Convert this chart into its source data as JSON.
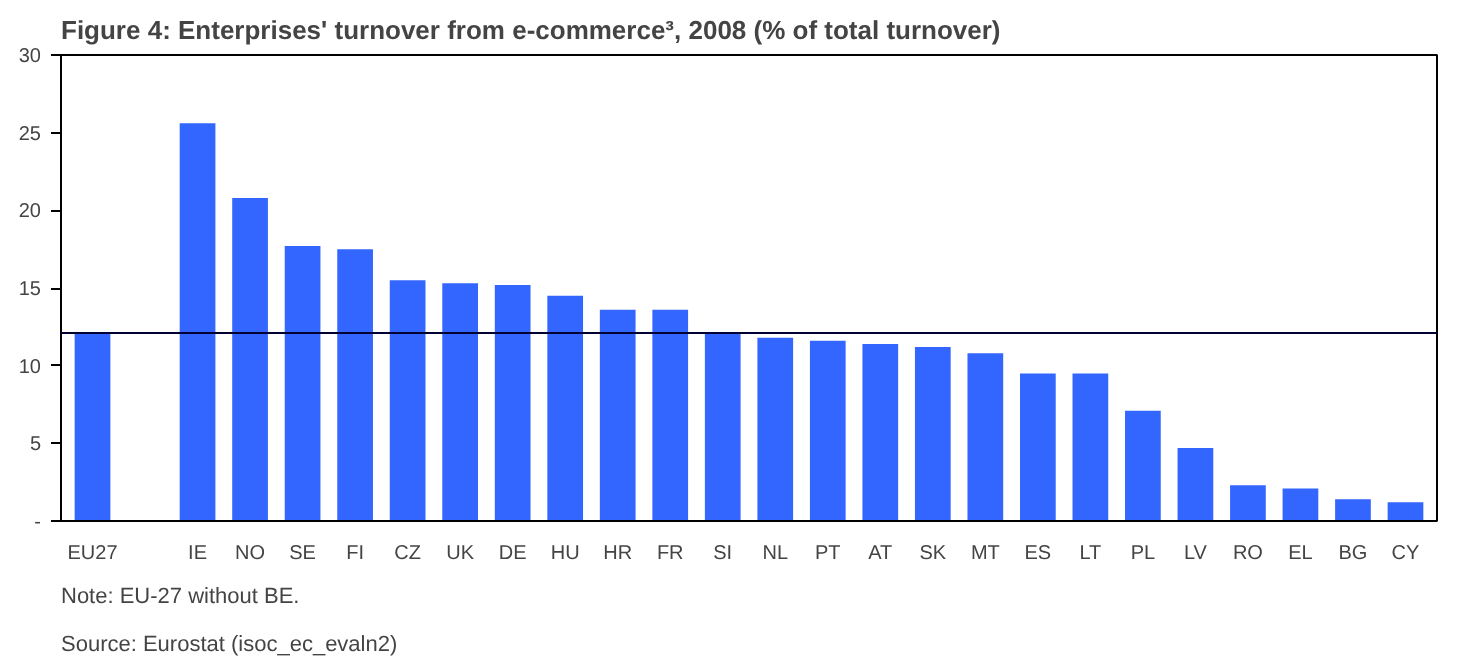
{
  "chart_data": {
    "type": "bar",
    "title": "Figure 4: Enterprises' turnover from e-commerce³, 2008 (% of total turnover)",
    "categories": [
      "EU27",
      null,
      "IE",
      "NO",
      "SE",
      "FI",
      "CZ",
      "UK",
      "DE",
      "HU",
      "HR",
      "FR",
      "SI",
      "NL",
      "PT",
      "AT",
      "SK",
      "MT",
      "ES",
      "LT",
      "PL",
      "LV",
      "RO",
      "EL",
      "BG",
      "CY"
    ],
    "values": [
      12.1,
      null,
      25.6,
      20.8,
      17.7,
      17.5,
      15.5,
      15.3,
      15.2,
      14.5,
      13.6,
      13.6,
      12.1,
      11.8,
      11.6,
      11.4,
      11.2,
      10.8,
      9.5,
      9.5,
      7.1,
      4.7,
      2.3,
      2.1,
      1.4,
      1.2
    ],
    "color": "#3366ff",
    "ylim": [
      0,
      30
    ],
    "yticks": [
      {
        "value": 0,
        "label": "-"
      },
      5,
      10,
      15,
      20,
      25,
      30
    ],
    "grid": false,
    "ref_lines": [
      {
        "axis": "y",
        "value": 12.1,
        "color": "#000033"
      }
    ],
    "annotations": [
      "Note: EU-27 without BE.",
      "Source: Eurostat (isoc_ec_evaln2)"
    ]
  }
}
